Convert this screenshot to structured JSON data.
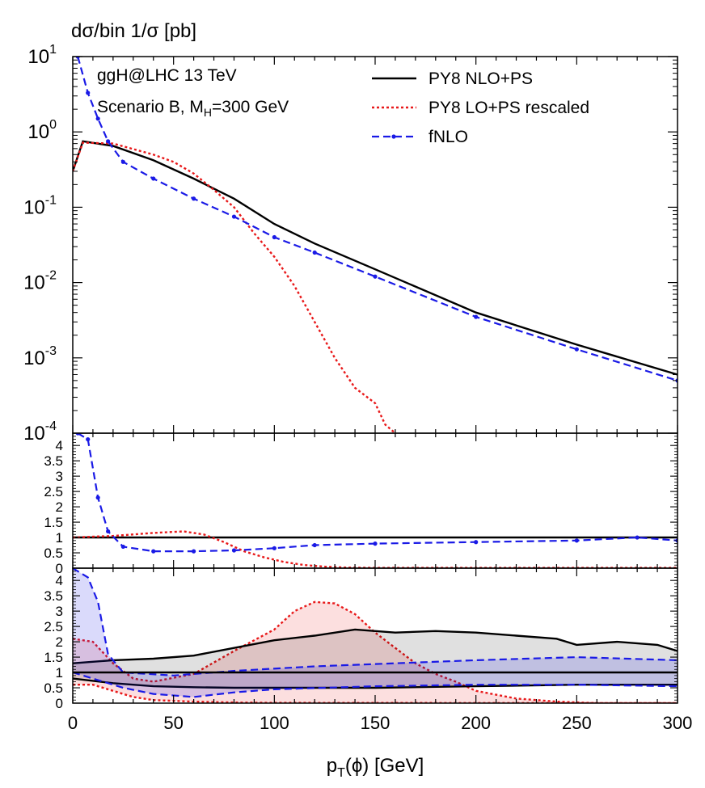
{
  "chart_data": {
    "type": "line",
    "ylabel": "dσ/bin 1/σ  [pb]",
    "xlabel_base": "p",
    "xlabel_sub": "T",
    "xlabel_rest": "(ϕ) [GeV]",
    "xlim": [
      0,
      300
    ],
    "x_ticks": [
      "0",
      "50",
      "100",
      "150",
      "200",
      "250",
      "300"
    ],
    "annotations": {
      "line1": "ggH@LHC 13 TeV",
      "line2_pre": "Scenario B, M",
      "line2_sub": "H",
      "line2_post": "=300 GeV"
    },
    "colors": {
      "nlops": "#000000",
      "lops": "#e8191a",
      "fnlo": "#1a1ae6"
    },
    "legend": [
      {
        "key": "nlops",
        "label": "PY8 NLO+PS"
      },
      {
        "key": "lops",
        "label": "PY8 LO+PS rescaled"
      },
      {
        "key": "fnlo",
        "label": "fNLO"
      }
    ],
    "main_panel": {
      "scale": "log",
      "ylim": [
        0.0001,
        10
      ],
      "y_ticks": [
        {
          "base": "10",
          "exp": "1"
        },
        {
          "base": "10",
          "exp": "0"
        },
        {
          "base": "10",
          "exp": "-1"
        },
        {
          "base": "10",
          "exp": "-2"
        },
        {
          "base": "10",
          "exp": "-3"
        },
        {
          "base": "10",
          "exp": "-4"
        }
      ],
      "series": [
        {
          "key": "nlops",
          "points": [
            [
              0,
              0.3
            ],
            [
              5,
              0.75
            ],
            [
              20,
              0.65
            ],
            [
              40,
              0.42
            ],
            [
              60,
              0.24
            ],
            [
              80,
              0.13
            ],
            [
              100,
              0.06
            ],
            [
              120,
              0.033
            ],
            [
              150,
              0.015
            ],
            [
              200,
              0.004
            ],
            [
              250,
              0.0015
            ],
            [
              300,
              0.0006
            ]
          ]
        },
        {
          "key": "lops",
          "points": [
            [
              0,
              0.3
            ],
            [
              5,
              0.72
            ],
            [
              20,
              0.7
            ],
            [
              40,
              0.5
            ],
            [
              50,
              0.4
            ],
            [
              60,
              0.28
            ],
            [
              70,
              0.17
            ],
            [
              80,
              0.1
            ],
            [
              90,
              0.045
            ],
            [
              100,
              0.022
            ],
            [
              110,
              0.009
            ],
            [
              120,
              0.003
            ],
            [
              130,
              0.001
            ],
            [
              140,
              0.0004
            ],
            [
              150,
              0.00025
            ],
            [
              155,
              0.00013
            ],
            [
              160,
              8e-05
            ]
          ]
        },
        {
          "key": "fnlo",
          "points": [
            [
              2.5,
              10
            ],
            [
              7.5,
              3.3
            ],
            [
              12.5,
              1.5
            ],
            [
              17.5,
              0.75
            ],
            [
              25,
              0.4
            ],
            [
              40,
              0.24
            ],
            [
              60,
              0.13
            ],
            [
              80,
              0.075
            ],
            [
              100,
              0.04
            ],
            [
              120,
              0.025
            ],
            [
              150,
              0.012
            ],
            [
              200,
              0.0035
            ],
            [
              250,
              0.0013
            ],
            [
              300,
              0.0005
            ]
          ]
        }
      ]
    },
    "ratio1_panel": {
      "ylim": [
        0,
        4.4
      ],
      "y_ticks": [
        "0",
        "0.5",
        "1",
        "1.5",
        "2",
        "2.5",
        "3",
        "3.5",
        "4"
      ],
      "series": [
        {
          "key": "nlops",
          "points": [
            [
              0,
              1
            ],
            [
              300,
              1
            ]
          ]
        },
        {
          "key": "lops",
          "points": [
            [
              0,
              1
            ],
            [
              20,
              1.05
            ],
            [
              40,
              1.15
            ],
            [
              55,
              1.2
            ],
            [
              65,
              1.1
            ],
            [
              75,
              0.85
            ],
            [
              85,
              0.55
            ],
            [
              95,
              0.35
            ],
            [
              105,
              0.2
            ],
            [
              115,
              0.1
            ],
            [
              125,
              0.05
            ],
            [
              135,
              0.02
            ],
            [
              150,
              0.01
            ],
            [
              300,
              0.01
            ]
          ]
        },
        {
          "key": "fnlo",
          "points": [
            [
              2.5,
              4.4
            ],
            [
              7.5,
              4.2
            ],
            [
              12.5,
              2.3
            ],
            [
              17.5,
              1.2
            ],
            [
              25,
              0.7
            ],
            [
              40,
              0.55
            ],
            [
              60,
              0.55
            ],
            [
              80,
              0.58
            ],
            [
              100,
              0.65
            ],
            [
              120,
              0.75
            ],
            [
              150,
              0.8
            ],
            [
              200,
              0.85
            ],
            [
              250,
              0.9
            ],
            [
              280,
              1.0
            ],
            [
              300,
              0.9
            ]
          ]
        }
      ]
    },
    "ratio2_panel": {
      "ylim": [
        0,
        4.4
      ],
      "y_ticks": [
        "0",
        "0.5",
        "1",
        "1.5",
        "2",
        "2.5",
        "3",
        "3.5",
        "4"
      ],
      "bands": [
        {
          "key": "lops",
          "upper": [
            [
              0,
              2.1
            ],
            [
              10,
              2.0
            ],
            [
              20,
              1.3
            ],
            [
              30,
              0.8
            ],
            [
              40,
              0.7
            ],
            [
              60,
              0.95
            ],
            [
              80,
              1.7
            ],
            [
              100,
              2.4
            ],
            [
              110,
              3.0
            ],
            [
              120,
              3.3
            ],
            [
              130,
              3.25
            ],
            [
              140,
              2.9
            ],
            [
              150,
              2.3
            ],
            [
              160,
              1.8
            ],
            [
              170,
              1.3
            ],
            [
              180,
              0.95
            ],
            [
              190,
              0.7
            ],
            [
              200,
              0.4
            ],
            [
              220,
              0.15
            ],
            [
              240,
              0.05
            ],
            [
              260,
              0.0
            ],
            [
              300,
              0.0
            ]
          ],
          "lower": [
            [
              0,
              0.6
            ],
            [
              10,
              0.6
            ],
            [
              20,
              0.4
            ],
            [
              30,
              0.2
            ],
            [
              40,
              0.1
            ],
            [
              60,
              0.05
            ],
            [
              80,
              0.02
            ],
            [
              100,
              0.01
            ],
            [
              300,
              0.0
            ]
          ]
        },
        {
          "key": "nlops",
          "upper": [
            [
              0,
              1.3
            ],
            [
              20,
              1.4
            ],
            [
              40,
              1.45
            ],
            [
              60,
              1.55
            ],
            [
              80,
              1.8
            ],
            [
              100,
              2.05
            ],
            [
              120,
              2.2
            ],
            [
              140,
              2.4
            ],
            [
              160,
              2.3
            ],
            [
              180,
              2.35
            ],
            [
              200,
              2.3
            ],
            [
              220,
              2.2
            ],
            [
              240,
              2.1
            ],
            [
              250,
              1.9
            ],
            [
              270,
              2.0
            ],
            [
              290,
              1.9
            ],
            [
              300,
              1.7
            ]
          ],
          "lower": [
            [
              0,
              0.8
            ],
            [
              20,
              0.65
            ],
            [
              40,
              0.55
            ],
            [
              60,
              0.52
            ],
            [
              80,
              0.5
            ],
            [
              100,
              0.5
            ],
            [
              150,
              0.5
            ],
            [
              200,
              0.55
            ],
            [
              250,
              0.6
            ],
            [
              300,
              0.6
            ]
          ]
        },
        {
          "key": "fnlo",
          "upper": [
            [
              0,
              4.4
            ],
            [
              7.5,
              4.1
            ],
            [
              12.5,
              3.3
            ],
            [
              17.5,
              1.6
            ],
            [
              25,
              1.0
            ],
            [
              50,
              0.9
            ],
            [
              80,
              1.05
            ],
            [
              120,
              1.2
            ],
            [
              160,
              1.3
            ],
            [
              200,
              1.4
            ],
            [
              250,
              1.5
            ],
            [
              300,
              1.4
            ]
          ],
          "lower": [
            [
              0,
              1.0
            ],
            [
              15,
              0.7
            ],
            [
              25,
              0.5
            ],
            [
              40,
              0.3
            ],
            [
              60,
              0.2
            ],
            [
              80,
              0.35
            ],
            [
              100,
              0.45
            ],
            [
              150,
              0.55
            ],
            [
              200,
              0.6
            ],
            [
              250,
              0.6
            ],
            [
              300,
              0.55
            ]
          ]
        }
      ],
      "center": [
        {
          "key": "nlops",
          "points": [
            [
              0,
              1
            ],
            [
              300,
              1
            ]
          ]
        }
      ]
    }
  }
}
